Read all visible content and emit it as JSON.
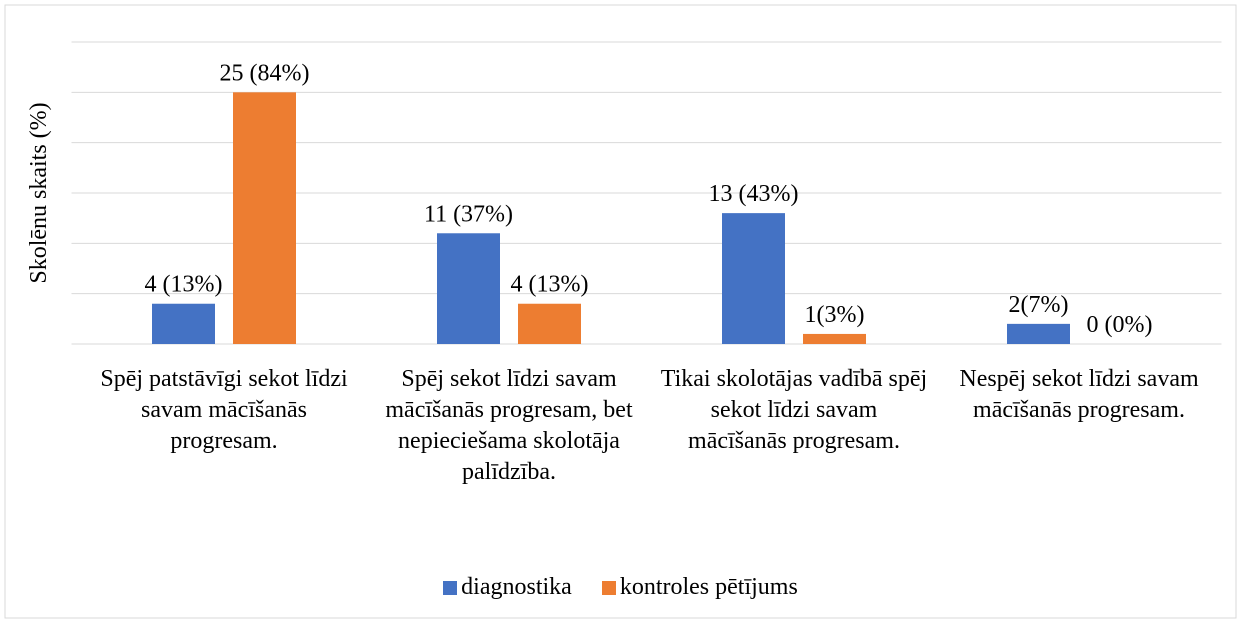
{
  "chart_data": {
    "type": "bar",
    "y_label": "Skolēnu skaits (%)",
    "categories": [
      "Spēj patstāvīgi sekot līdzi savam mācīšanās progresam.",
      "Spēj sekot līdzi savam mācīšanās progresam, bet nepieciešama skolotāja palīdzība.",
      "Tikai skolotājas vadībā spēj sekot līdzi savam mācīšanās progresam.",
      "Nespēj sekot līdzi savam mācīšanās progresam."
    ],
    "series": [
      {
        "name": "diagnostika",
        "color": "#4472c4",
        "values": [
          4,
          11,
          13,
          2
        ],
        "value_labels": [
          "4 (13%)",
          "11 (37%)",
          "13 (43%)",
          "2(7%)"
        ]
      },
      {
        "name": "kontroles pētījums",
        "color": "#ed7d31",
        "values": [
          25,
          4,
          1,
          0
        ],
        "value_labels": [
          "25 (84%)",
          "4 (13%)",
          "1(3%)",
          "0 (0%)"
        ]
      }
    ],
    "ylim": [
      0,
      30
    ],
    "yticks": [
      0,
      5,
      10,
      15,
      20,
      25,
      30
    ],
    "grid": true,
    "legend": "bottom"
  }
}
